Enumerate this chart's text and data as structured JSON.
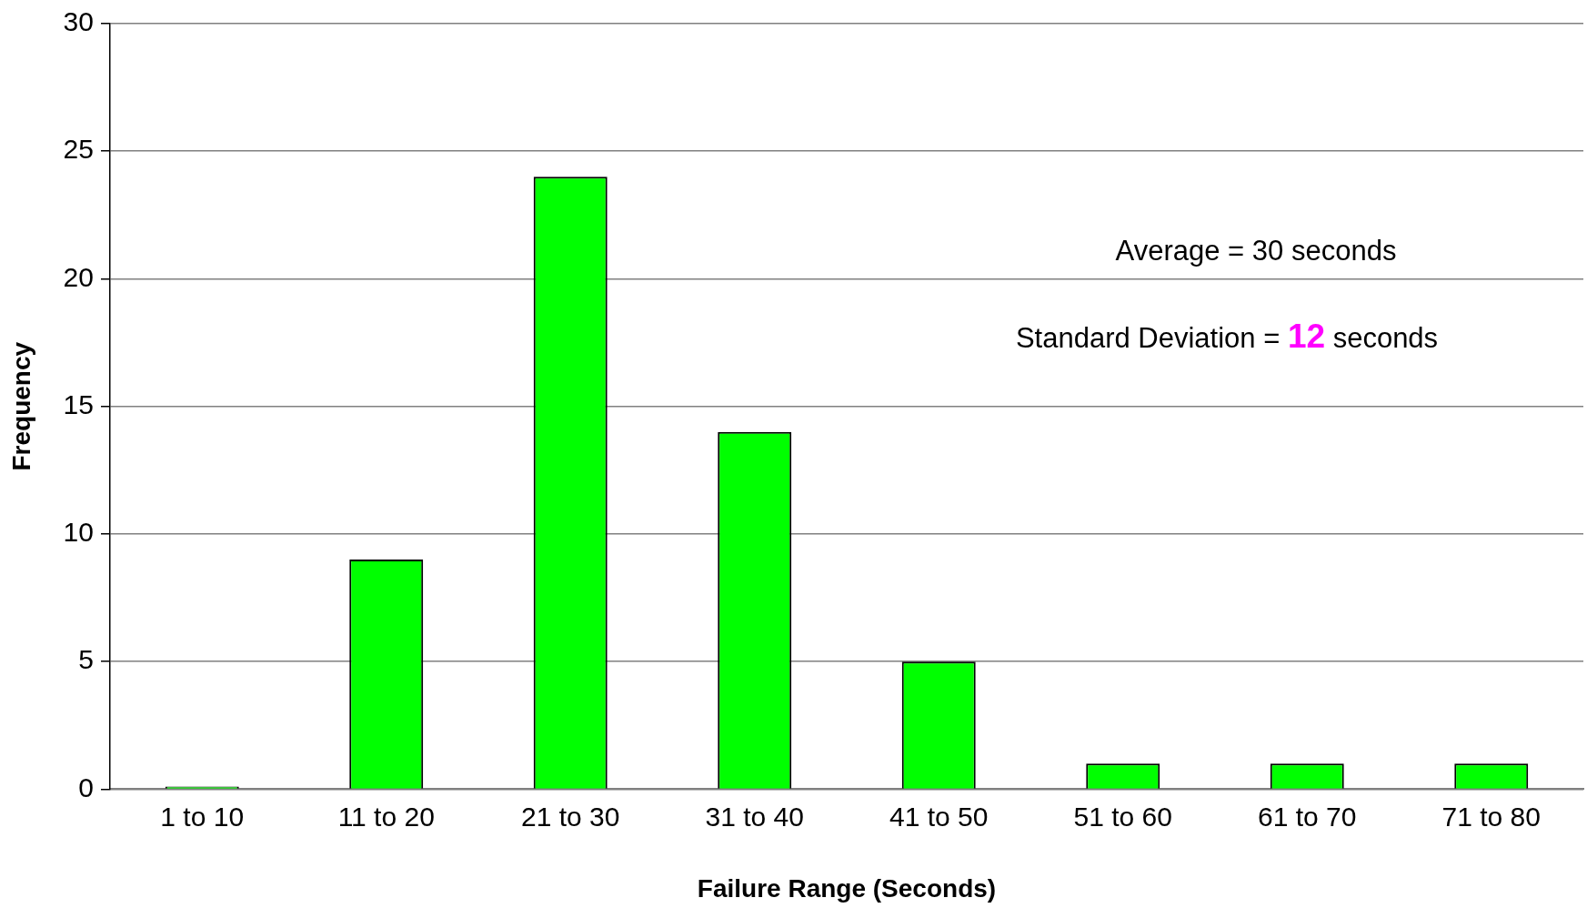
{
  "chart_data": {
    "type": "bar",
    "xlabel": "Failure Range (Seconds)",
    "ylabel": "Frequency",
    "categories": [
      "1 to 10",
      "11 to 20",
      "21 to 30",
      "31 to 40",
      "41 to 50",
      "51 to 60",
      "61 to 70",
      "71 to 80"
    ],
    "values": [
      0.1,
      9,
      24,
      14,
      5,
      1,
      1,
      1
    ],
    "color": "#00ff00",
    "ylim": [
      0,
      30
    ],
    "yticks": [
      0,
      5,
      10,
      15,
      20,
      25,
      30
    ],
    "grid": "y",
    "legend": false,
    "annotations": [
      "Average = 30 seconds",
      "Standard Deviation = 12 seconds"
    ]
  }
}
